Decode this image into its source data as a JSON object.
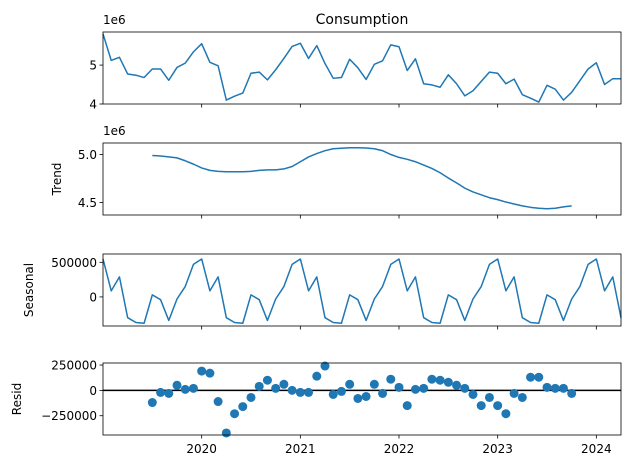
{
  "chart_data": [
    {
      "type": "line",
      "panel": "observed",
      "title": "Consumption",
      "ylabel": "",
      "offset_text": "1e6",
      "ylim": [
        4.0,
        5.85
      ],
      "yticks": [
        {
          "v": 4,
          "label": "4"
        },
        {
          "v": 5,
          "label": "5"
        }
      ],
      "color": "#1f77b4",
      "x": [
        "2019-01",
        "2019-02",
        "2019-03",
        "2019-04",
        "2019-05",
        "2019-06",
        "2019-07",
        "2019-08",
        "2019-09",
        "2019-10",
        "2019-11",
        "2019-12",
        "2020-01",
        "2020-02",
        "2020-03",
        "2020-04",
        "2020-05",
        "2020-06",
        "2020-07",
        "2020-08",
        "2020-09",
        "2020-10",
        "2020-11",
        "2020-12",
        "2021-01",
        "2021-02",
        "2021-03",
        "2021-04",
        "2021-05",
        "2021-06",
        "2021-07",
        "2021-08",
        "2021-09",
        "2021-10",
        "2021-11",
        "2021-12",
        "2022-01",
        "2022-02",
        "2022-03",
        "2022-04",
        "2022-05",
        "2022-06",
        "2022-07",
        "2022-08",
        "2022-09",
        "2022-10",
        "2022-11",
        "2022-12",
        "2023-01",
        "2023-02",
        "2023-03",
        "2023-04",
        "2023-05",
        "2023-06",
        "2023-07",
        "2023-08",
        "2023-09",
        "2023-10",
        "2023-11",
        "2023-12",
        "2024-01",
        "2024-02",
        "2024-03",
        "2024-04"
      ],
      "values": [
        5.8,
        5.12,
        5.2,
        4.77,
        4.74,
        4.68,
        4.9,
        4.9,
        4.61,
        4.94,
        5.05,
        5.34,
        5.55,
        5.07,
        4.98,
        4.1,
        4.2,
        4.28,
        4.79,
        4.82,
        4.62,
        4.88,
        5.17,
        5.48,
        5.56,
        5.17,
        5.5,
        5.04,
        4.66,
        4.68,
        5.15,
        4.93,
        4.63,
        5.02,
        5.11,
        5.52,
        5.47,
        4.86,
        5.16,
        4.52,
        4.49,
        4.43,
        4.75,
        4.52,
        4.21,
        4.34,
        4.58,
        4.82,
        4.79,
        4.52,
        4.64,
        4.24,
        4.15,
        4.05,
        4.48,
        4.38,
        4.1,
        4.3,
        4.6,
        4.9,
        5.06,
        4.5,
        4.65,
        4.65
      ]
    },
    {
      "type": "line",
      "panel": "trend",
      "ylabel": "Trend",
      "offset_text": "1e6",
      "ylim": [
        4.37,
        5.12
      ],
      "yticks": [
        {
          "v": 4.5,
          "label": "4.5"
        },
        {
          "v": 5.0,
          "label": "5.0"
        }
      ],
      "color": "#1f77b4",
      "x": [
        "2019-07",
        "2019-08",
        "2019-09",
        "2019-10",
        "2019-11",
        "2019-12",
        "2020-01",
        "2020-02",
        "2020-03",
        "2020-04",
        "2020-05",
        "2020-06",
        "2020-07",
        "2020-08",
        "2020-09",
        "2020-10",
        "2020-11",
        "2020-12",
        "2021-01",
        "2021-02",
        "2021-03",
        "2021-04",
        "2021-05",
        "2021-06",
        "2021-07",
        "2021-08",
        "2021-09",
        "2021-10",
        "2021-11",
        "2021-12",
        "2022-01",
        "2022-02",
        "2022-03",
        "2022-04",
        "2022-05",
        "2022-06",
        "2022-07",
        "2022-08",
        "2022-09",
        "2022-10",
        "2022-11",
        "2022-12",
        "2023-01",
        "2023-02",
        "2023-03",
        "2023-04",
        "2023-05",
        "2023-06",
        "2023-07",
        "2023-08",
        "2023-09",
        "2023-10"
      ],
      "values": [
        4.99,
        4.985,
        4.975,
        4.965,
        4.935,
        4.9,
        4.86,
        4.835,
        4.825,
        4.82,
        4.82,
        4.82,
        4.825,
        4.835,
        4.84,
        4.84,
        4.85,
        4.875,
        4.925,
        4.975,
        5.01,
        5.04,
        5.06,
        5.065,
        5.07,
        5.07,
        5.068,
        5.06,
        5.04,
        5.0,
        4.97,
        4.95,
        4.925,
        4.89,
        4.855,
        4.81,
        4.755,
        4.705,
        4.65,
        4.61,
        4.58,
        4.55,
        4.53,
        4.505,
        4.485,
        4.465,
        4.45,
        4.44,
        4.435,
        4.44,
        4.455,
        4.465
      ]
    },
    {
      "type": "line",
      "panel": "seasonal",
      "ylabel": "Seasonal",
      "ylim": [
        -420000,
        620000
      ],
      "yticks": [
        {
          "v": 0,
          "label": "0"
        },
        {
          "v": 500000,
          "label": "500000"
        }
      ],
      "color": "#1f77b4",
      "x": [
        "2019-01",
        "2019-02",
        "2019-03",
        "2019-04",
        "2019-05",
        "2019-06",
        "2019-07",
        "2019-08",
        "2019-09",
        "2019-10",
        "2019-11",
        "2019-12",
        "2020-01",
        "2020-02",
        "2020-03",
        "2020-04",
        "2020-05",
        "2020-06",
        "2020-07",
        "2020-08",
        "2020-09",
        "2020-10",
        "2020-11",
        "2020-12",
        "2021-01",
        "2021-02",
        "2021-03",
        "2021-04",
        "2021-05",
        "2021-06",
        "2021-07",
        "2021-08",
        "2021-09",
        "2021-10",
        "2021-11",
        "2021-12",
        "2022-01",
        "2022-02",
        "2022-03",
        "2022-04",
        "2022-05",
        "2022-06",
        "2022-07",
        "2022-08",
        "2022-09",
        "2022-10",
        "2022-11",
        "2022-12",
        "2023-01",
        "2023-02",
        "2023-03",
        "2023-04",
        "2023-05",
        "2023-06",
        "2023-07",
        "2023-08",
        "2023-09",
        "2023-10",
        "2023-11",
        "2023-12",
        "2024-01",
        "2024-02",
        "2024-03",
        "2024-04"
      ],
      "values": [
        548000,
        88000,
        290000,
        -300000,
        -370000,
        -380000,
        30000,
        -40000,
        -340000,
        -30000,
        150000,
        470000,
        548000,
        88000,
        290000,
        -300000,
        -370000,
        -380000,
        30000,
        -40000,
        -340000,
        -30000,
        150000,
        470000,
        548000,
        88000,
        290000,
        -300000,
        -370000,
        -380000,
        30000,
        -40000,
        -340000,
        -30000,
        150000,
        470000,
        548000,
        88000,
        290000,
        -300000,
        -370000,
        -380000,
        30000,
        -40000,
        -340000,
        -30000,
        150000,
        470000,
        548000,
        88000,
        290000,
        -300000,
        -370000,
        -380000,
        30000,
        -40000,
        -340000,
        -30000,
        150000,
        470000,
        548000,
        88000,
        290000,
        -300000
      ]
    },
    {
      "type": "scatter",
      "panel": "resid",
      "ylabel": "Resid",
      "ylim": [
        -440000,
        270000
      ],
      "yticks": [
        {
          "v": -250000,
          "label": "−250000"
        },
        {
          "v": 0,
          "label": "0"
        },
        {
          "v": 250000,
          "label": "250000"
        }
      ],
      "color": "#1f77b4",
      "x": [
        "2019-07",
        "2019-08",
        "2019-09",
        "2019-10",
        "2019-11",
        "2019-12",
        "2020-01",
        "2020-02",
        "2020-03",
        "2020-04",
        "2020-05",
        "2020-06",
        "2020-07",
        "2020-08",
        "2020-09",
        "2020-10",
        "2020-11",
        "2020-12",
        "2021-01",
        "2021-02",
        "2021-03",
        "2021-04",
        "2021-05",
        "2021-06",
        "2021-07",
        "2021-08",
        "2021-09",
        "2021-10",
        "2021-11",
        "2021-12",
        "2022-01",
        "2022-02",
        "2022-03",
        "2022-04",
        "2022-05",
        "2022-06",
        "2022-07",
        "2022-08",
        "2022-09",
        "2022-10",
        "2022-11",
        "2022-12",
        "2023-01",
        "2023-02",
        "2023-03",
        "2023-04",
        "2023-05",
        "2023-06",
        "2023-07",
        "2023-08",
        "2023-09",
        "2023-10"
      ],
      "values": [
        -120000,
        -20000,
        -30000,
        50000,
        10000,
        20000,
        190000,
        170000,
        -110000,
        -420000,
        -230000,
        -160000,
        -70000,
        40000,
        100000,
        20000,
        60000,
        0,
        -20000,
        -20000,
        140000,
        240000,
        -40000,
        -10000,
        60000,
        -80000,
        -60000,
        60000,
        -30000,
        110000,
        30000,
        -150000,
        10000,
        20000,
        110000,
        100000,
        80000,
        50000,
        20000,
        -40000,
        -150000,
        -70000,
        -150000,
        -230000,
        -30000,
        -70000,
        130000,
        130000,
        30000,
        20000,
        20000,
        -30000
      ]
    }
  ],
  "xaxis": {
    "start": "2019-01",
    "end": "2024-04",
    "tick_labels": [
      {
        "date": "2020-01",
        "label": "2020"
      },
      {
        "date": "2021-01",
        "label": "2021"
      },
      {
        "date": "2022-01",
        "label": "2022"
      },
      {
        "date": "2023-01",
        "label": "2023"
      },
      {
        "date": "2024-01",
        "label": "2024"
      }
    ]
  }
}
